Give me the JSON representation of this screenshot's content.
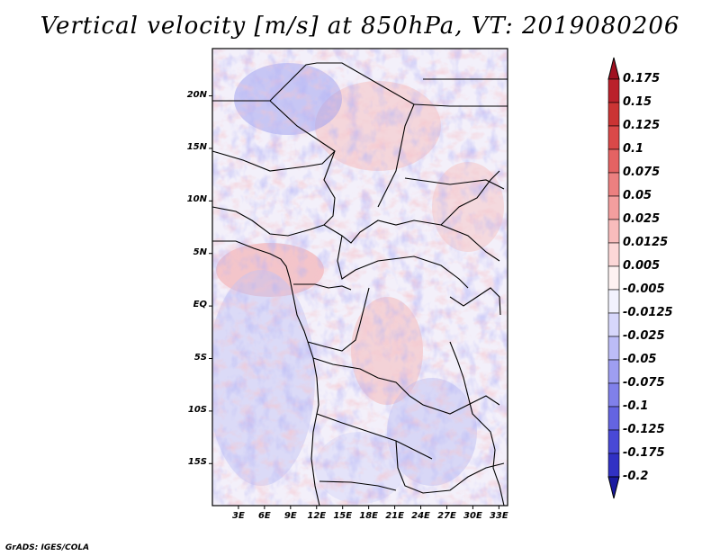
{
  "title": "Vertical velocity [m/s] at 850hPa, VT: 2019080206",
  "credit": "GrADS: IGES/COLA",
  "map": {
    "lat_range": [
      -19,
      24.5
    ],
    "lon_range": [
      0,
      34
    ],
    "lat_ticks": [
      {
        "value": 20,
        "label": "20N"
      },
      {
        "value": 15,
        "label": "15N"
      },
      {
        "value": 10,
        "label": "10N"
      },
      {
        "value": 5,
        "label": "5N"
      },
      {
        "value": 0,
        "label": "EQ"
      },
      {
        "value": -5,
        "label": "5S"
      },
      {
        "value": -10,
        "label": "10S"
      },
      {
        "value": -15,
        "label": "15S"
      }
    ],
    "lon_ticks": [
      {
        "value": 3,
        "label": "3E"
      },
      {
        "value": 6,
        "label": "6E"
      },
      {
        "value": 9,
        "label": "9E"
      },
      {
        "value": 12,
        "label": "12E"
      },
      {
        "value": 15,
        "label": "15E"
      },
      {
        "value": 18,
        "label": "18E"
      },
      {
        "value": 21,
        "label": "21E"
      },
      {
        "value": 24,
        "label": "24E"
      },
      {
        "value": 27,
        "label": "27E"
      },
      {
        "value": 30,
        "label": "30E"
      },
      {
        "value": 33,
        "label": "33E"
      }
    ]
  },
  "colorbar": {
    "levels": [
      {
        "label": "0.175",
        "color": "#b2182b"
      },
      {
        "label": "0.15",
        "color": "#c22a2a"
      },
      {
        "label": "0.125",
        "color": "#d33d3d"
      },
      {
        "label": "0.1",
        "color": "#e05555"
      },
      {
        "label": "0.075",
        "color": "#e87171"
      },
      {
        "label": "0.05",
        "color": "#f08e8e"
      },
      {
        "label": "0.025",
        "color": "#f6adad"
      },
      {
        "label": "0.0125",
        "color": "#facaca"
      },
      {
        "label": "0.005",
        "color": "#fde4e4"
      },
      {
        "label": "-0.005",
        "color": "#ffffff"
      },
      {
        "label": "-0.0125",
        "color": "#e4e4fd"
      },
      {
        "label": "-0.025",
        "color": "#cacaf9"
      },
      {
        "label": "-0.05",
        "color": "#adadf4"
      },
      {
        "label": "-0.075",
        "color": "#8e8eee"
      },
      {
        "label": "-0.1",
        "color": "#7272e6"
      },
      {
        "label": "-0.125",
        "color": "#5656dc"
      },
      {
        "label": "-0.175",
        "color": "#3c3ccf"
      },
      {
        "label": "-0.2",
        "color": "#2525b8"
      }
    ],
    "top_color": "#a01020",
    "bottom_color": "#1a1aa0"
  }
}
